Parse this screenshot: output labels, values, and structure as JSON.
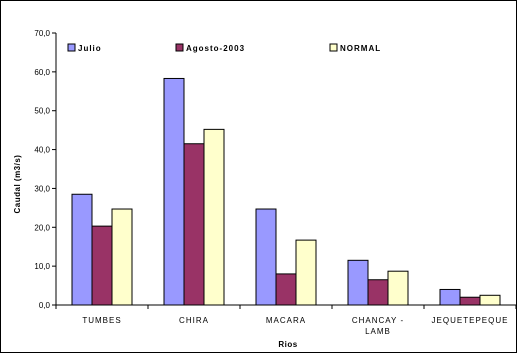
{
  "chart_data": {
    "type": "bar",
    "title": "",
    "xlabel": "Rios",
    "ylabel": "Caudal (m3/s)",
    "ylim": [
      0,
      70
    ],
    "yticks": [
      "0,0",
      "10,0",
      "20,0",
      "30,0",
      "40,0",
      "50,0",
      "60,0",
      "70,0"
    ],
    "grid": false,
    "legend": "top",
    "categories": [
      [
        "TUMBES"
      ],
      [
        "CHIRA"
      ],
      [
        "MACARA"
      ],
      [
        "CHANCAY -",
        "LAMB"
      ],
      [
        "JEQUETEPEQUE"
      ]
    ],
    "series": [
      {
        "name": "Julio",
        "color": "#9999ff",
        "values": [
          28.5,
          58.3,
          24.7,
          11.5,
          4.0
        ]
      },
      {
        "name": "Agosto-2003",
        "color": "#993366",
        "values": [
          20.3,
          41.5,
          8.0,
          6.5,
          2.0
        ]
      },
      {
        "name": "NORMAL",
        "color": "#ffffcc",
        "values": [
          24.7,
          45.2,
          16.7,
          8.7,
          2.5
        ]
      }
    ]
  }
}
